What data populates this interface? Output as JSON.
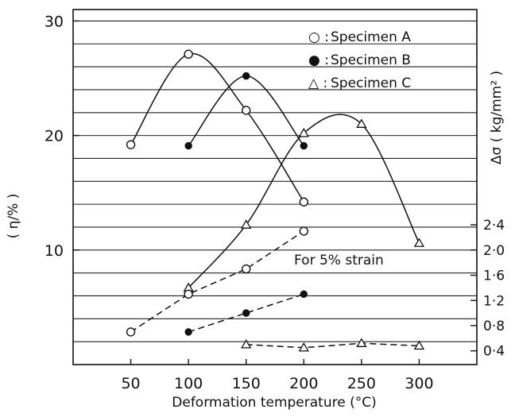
{
  "chart_data": {
    "type": "line",
    "xlabel": "Deformation temperature  (°C)",
    "ylabel": "( η/% )",
    "ylabel_right": "Δσ  ( kg/mm² )",
    "x_ticks": [
      "50",
      "100",
      "150",
      "200",
      "250",
      "300"
    ],
    "y_ticks": [
      "10",
      "20",
      "30"
    ],
    "y_right_ticks": [
      "0·4",
      "0·8",
      "1·2",
      "1·6",
      "2·0",
      "2·4"
    ],
    "xlim": [
      0,
      350
    ],
    "ylim": [
      0,
      31
    ],
    "y_right_scale": {
      "value": [
        0.4,
        2.4
      ],
      "position_on_left_axis": [
        1.2,
        12.2
      ]
    },
    "legend": [
      "Specimen  A",
      "Specimen  B",
      "Specimen  C"
    ],
    "legend_prefix": [
      "○ :",
      "● :",
      "△ :"
    ],
    "annotation": "For 5% strain",
    "grid": "horizontal",
    "series": [
      {
        "name": "Specimen  A",
        "axis": "left",
        "marker": "open-circle",
        "style": "solid",
        "x": [
          50,
          100,
          150,
          200
        ],
        "y": [
          19.2,
          27.1,
          22.2,
          14.2
        ]
      },
      {
        "name": "Specimen  B",
        "axis": "left",
        "marker": "filled-circle",
        "style": "solid",
        "x": [
          100,
          150,
          200
        ],
        "y": [
          19.1,
          25.2,
          19.1
        ]
      },
      {
        "name": "Specimen  C",
        "axis": "left",
        "marker": "open-triangle",
        "style": "solid",
        "x": [
          100,
          150,
          200,
          250,
          300
        ],
        "y": [
          6.7,
          12.2,
          20.2,
          21.0,
          10.6
        ]
      },
      {
        "name": "Specimen  A",
        "axis": "right",
        "marker": "open-circle",
        "style": "dashed",
        "x": [
          50,
          100,
          150,
          200
        ],
        "y": [
          0.7,
          1.3,
          1.7,
          2.3
        ]
      },
      {
        "name": "Specimen  B",
        "axis": "right",
        "marker": "filled-circle",
        "style": "dashed",
        "x": [
          100,
          150,
          200
        ],
        "y": [
          0.7,
          1.0,
          1.3
        ]
      },
      {
        "name": "Specimen  C",
        "axis": "right",
        "marker": "open-triangle",
        "style": "dashed",
        "x": [
          150,
          200,
          250,
          300
        ],
        "y": [
          0.5,
          0.45,
          0.52,
          0.48
        ]
      }
    ]
  }
}
